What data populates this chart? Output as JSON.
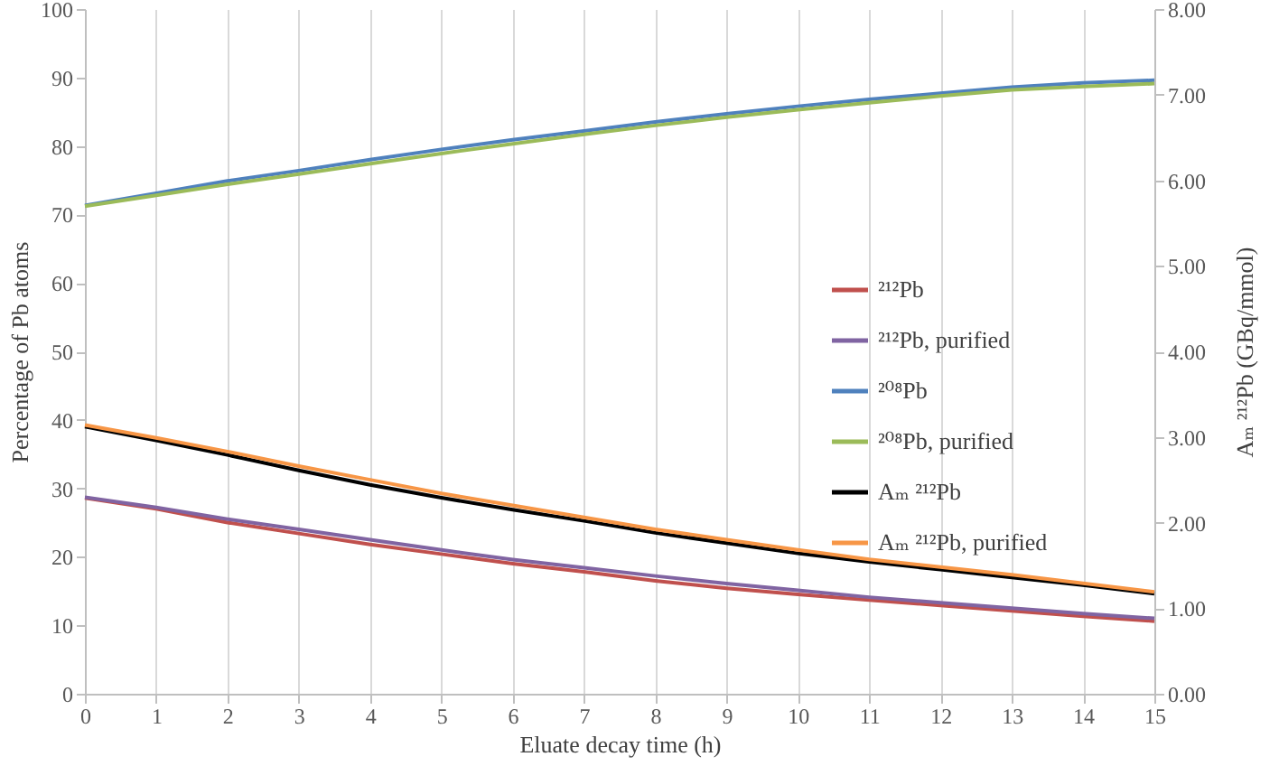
{
  "chart_data": {
    "type": "line",
    "xlabel": "Eluate decay time (h)",
    "ylabel": "Percentage of Pb atoms",
    "y2label": "Aₘ ²¹²Pb (GBq/mmol)",
    "x": [
      0,
      1,
      2,
      3,
      4,
      5,
      6,
      7,
      8,
      9,
      10,
      11,
      12,
      13,
      14,
      15
    ],
    "series": [
      {
        "name": "²¹²Pb",
        "color": "#c0504d",
        "values": [
          28.6,
          27.0,
          25.0,
          23.4,
          21.8,
          20.4,
          19.0,
          17.8,
          16.5,
          15.4,
          14.5,
          13.7,
          12.9,
          12.1,
          11.3,
          10.6
        ]
      },
      {
        "name": "²¹²Pb, purified",
        "color": "#8064a2",
        "values": [
          28.7,
          27.2,
          25.5,
          24.0,
          22.5,
          21.0,
          19.6,
          18.4,
          17.2,
          16.1,
          15.1,
          14.1,
          13.3,
          12.5,
          11.7,
          11.0
        ]
      },
      {
        "name": "²⁰⁸Pb",
        "color": "#4f81bd",
        "values": [
          71.3,
          73.1,
          74.9,
          76.4,
          78.0,
          79.5,
          80.9,
          82.2,
          83.5,
          84.7,
          85.8,
          86.8,
          87.7,
          88.6,
          89.2,
          89.6
        ]
      },
      {
        "name": "²⁰⁸Pb, purified",
        "color": "#9bbb59",
        "values": [
          71.2,
          72.8,
          74.4,
          75.9,
          77.4,
          78.9,
          80.3,
          81.7,
          83.0,
          84.2,
          85.3,
          86.3,
          87.3,
          88.2,
          88.7,
          89.1
        ]
      },
      {
        "name": "Aₘ ²¹²Pb",
        "color": "#000000",
        "axis": "y2",
        "values": [
          3.12,
          2.96,
          2.79,
          2.61,
          2.44,
          2.29,
          2.15,
          2.02,
          1.88,
          1.76,
          1.64,
          1.54,
          1.45,
          1.36,
          1.27,
          1.17
        ]
      },
      {
        "name": "Aₘ ²¹²Pb, purified",
        "color": "#f79646",
        "axis": "y2",
        "values": [
          3.14,
          2.99,
          2.83,
          2.66,
          2.5,
          2.34,
          2.2,
          2.06,
          1.92,
          1.8,
          1.68,
          1.57,
          1.48,
          1.39,
          1.29,
          1.19
        ]
      }
    ],
    "xlim": [
      0,
      15
    ],
    "xticks": [
      0,
      1,
      2,
      3,
      4,
      5,
      6,
      7,
      8,
      9,
      10,
      11,
      12,
      13,
      14,
      15
    ],
    "ylim": [
      0,
      100
    ],
    "yticks": [
      0,
      10,
      20,
      30,
      40,
      50,
      60,
      70,
      80,
      90,
      100
    ],
    "y2lim": [
      0,
      8
    ],
    "y2ticks": [
      {
        "value": 0,
        "label": "0.00"
      },
      {
        "value": 1,
        "label": "1.00"
      },
      {
        "value": 2,
        "label": "2.00"
      },
      {
        "value": 3,
        "label": "3.00"
      },
      {
        "value": 4,
        "label": "4.00"
      },
      {
        "value": 5,
        "label": "5.00"
      },
      {
        "value": 6,
        "label": "6.00"
      },
      {
        "value": 7,
        "label": "7.00"
      },
      {
        "value": 8,
        "label": "8.00"
      }
    ],
    "grid": "x",
    "legend": "right",
    "marker": "none",
    "line_style": "solid"
  }
}
